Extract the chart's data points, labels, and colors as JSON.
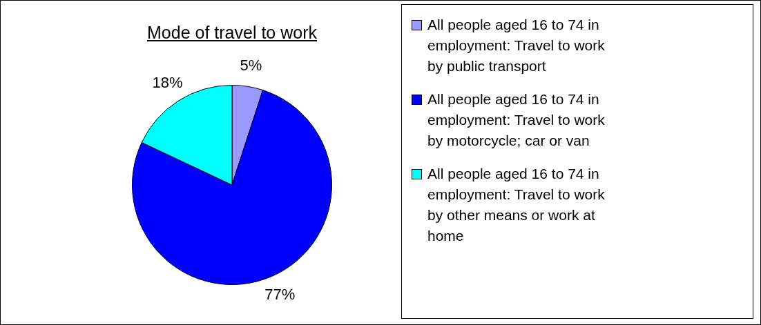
{
  "chart_data": {
    "type": "pie",
    "title": "Mode of travel to work",
    "categories": [
      "All people aged 16 to 74 in employment: Travel to work by public transport",
      "All people aged 16 to 74 in employment: Travel to work by motorcycle; car or van",
      "All people aged 16 to 74 in employment: Travel to work by other means or work at home"
    ],
    "values": [
      5,
      77,
      18
    ],
    "colors": [
      "#9999ff",
      "#0000ff",
      "#00ffff"
    ],
    "value_labels": [
      "5%",
      "77%",
      "18%"
    ],
    "legend": "right"
  }
}
